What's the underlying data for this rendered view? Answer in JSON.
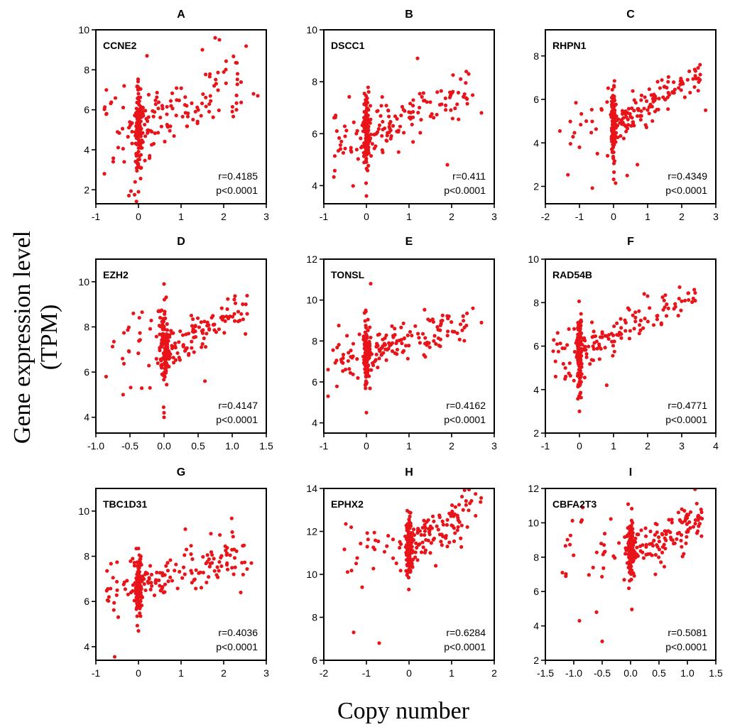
{
  "figure": {
    "ylabel_line1": "Gene expression level",
    "ylabel_line2": "(TPM)",
    "xlabel": "Copy number"
  },
  "colors": {
    "points": "#e8141a",
    "axes": "#000000"
  },
  "chart_data": [
    {
      "type": "scatter",
      "letter": "A",
      "gene": "CCNE2",
      "r": "r=0.4185",
      "p": "p<0.0001",
      "xlim": [
        -1,
        3
      ],
      "ylim": [
        1.3,
        10
      ],
      "xticks": [
        -1,
        0,
        1,
        2,
        3
      ],
      "xtick_labels": [
        "-1",
        "0",
        "1",
        "2",
        "3"
      ],
      "yticks": [
        2,
        4,
        6,
        8,
        10
      ],
      "ytick_labels": [
        "2",
        "4",
        "6",
        "8",
        "10"
      ],
      "cluster_mean": 5.0,
      "cluster_spread": 1.2,
      "slope": 1.0,
      "slope_spread": 1.1,
      "extra": [
        [
          1.8,
          9.6
        ],
        [
          1.9,
          9.5
        ],
        [
          1.5,
          9.0
        ],
        [
          0.2,
          8.7
        ],
        [
          2.7,
          6.8
        ],
        [
          2.8,
          6.7
        ],
        [
          -0.8,
          2.8
        ],
        [
          0.0,
          1.9
        ],
        [
          2.3,
          6.0
        ]
      ]
    },
    {
      "type": "scatter",
      "letter": "B",
      "gene": "DSCC1",
      "r": "r=0.411",
      "p": "p<0.0001",
      "xlim": [
        -1,
        3
      ],
      "ylim": [
        3.3,
        10
      ],
      "xticks": [
        -1,
        0,
        1,
        2,
        3
      ],
      "xtick_labels": [
        "-1",
        "0",
        "1",
        "2",
        "3"
      ],
      "yticks": [
        4,
        6,
        8,
        10
      ],
      "ytick_labels": [
        "4",
        "6",
        "8",
        "10"
      ],
      "cluster_mean": 6.0,
      "cluster_spread": 0.75,
      "slope": 0.7,
      "slope_spread": 0.7,
      "extra": [
        [
          1.2,
          8.9
        ],
        [
          2.4,
          8.3
        ],
        [
          0.0,
          3.6
        ],
        [
          1.9,
          4.8
        ],
        [
          2.7,
          6.8
        ],
        [
          -0.5,
          5.9
        ]
      ]
    },
    {
      "type": "scatter",
      "letter": "C",
      "gene": "RHPN1",
      "r": "r=0.4349",
      "p": "p<0.0001",
      "xlim": [
        -2,
        3
      ],
      "ylim": [
        1.2,
        9.2
      ],
      "xticks": [
        -2,
        -1,
        0,
        1,
        2,
        3
      ],
      "xtick_labels": [
        "-2",
        "-1",
        "0",
        "1",
        "2",
        "3"
      ],
      "yticks": [
        2,
        4,
        6,
        8
      ],
      "ytick_labels": [
        "2",
        "4",
        "6",
        "8"
      ],
      "cluster_mean": 4.9,
      "cluster_spread": 0.9,
      "slope": 0.9,
      "slope_spread": 0.6,
      "extra": [
        [
          2.5,
          6.8
        ],
        [
          2.7,
          5.5
        ],
        [
          -1.0,
          3.8
        ],
        [
          -0.8,
          5.0
        ],
        [
          0.4,
          2.5
        ],
        [
          0.7,
          3.0
        ]
      ]
    },
    {
      "type": "scatter",
      "letter": "D",
      "gene": "EZH2",
      "r": "r=0.4147",
      "p": "p<0.0001",
      "xlim": [
        -1.0,
        1.5
      ],
      "ylim": [
        3.3,
        11
      ],
      "xticks": [
        -1.0,
        -0.5,
        0.0,
        0.5,
        1.0,
        1.5
      ],
      "xtick_labels": [
        "-1.0",
        "-0.5",
        "0.0",
        "0.5",
        "1.0",
        "1.5"
      ],
      "yticks": [
        4,
        6,
        8,
        10
      ],
      "ytick_labels": [
        "4",
        "6",
        "8",
        "10"
      ],
      "cluster_mean": 7.0,
      "cluster_spread": 0.85,
      "slope": 1.5,
      "slope_spread": 0.6,
      "extra": [
        [
          0.0,
          9.9
        ],
        [
          0.0,
          4.0
        ],
        [
          0.0,
          4.2
        ],
        [
          -0.85,
          5.8
        ],
        [
          -0.6,
          5.0
        ],
        [
          -0.45,
          8.6
        ],
        [
          1.2,
          9.0
        ],
        [
          0.6,
          5.6
        ]
      ]
    },
    {
      "type": "scatter",
      "letter": "E",
      "gene": "TONSL",
      "r": "r=0.4162",
      "p": "p<0.0001",
      "xlim": [
        -1,
        3
      ],
      "ylim": [
        3.5,
        12
      ],
      "xticks": [
        -1,
        0,
        1,
        2,
        3
      ],
      "xtick_labels": [
        "-1",
        "0",
        "1",
        "2",
        "3"
      ],
      "yticks": [
        4,
        6,
        8,
        10,
        12
      ],
      "ytick_labels": [
        "4",
        "6",
        "8",
        "10",
        "12"
      ],
      "cluster_mean": 7.3,
      "cluster_spread": 0.75,
      "slope": 0.7,
      "slope_spread": 0.7,
      "extra": [
        [
          0.1,
          10.8
        ],
        [
          0.0,
          4.5
        ],
        [
          2.5,
          9.6
        ],
        [
          2.7,
          8.9
        ],
        [
          -0.9,
          5.3
        ],
        [
          -0.9,
          6.6
        ]
      ]
    },
    {
      "type": "scatter",
      "letter": "F",
      "gene": "RAD54B",
      "r": "r=0.4771",
      "p": "p<0.0001",
      "xlim": [
        -1,
        4
      ],
      "ylim": [
        2,
        10
      ],
      "xticks": [
        -1,
        0,
        1,
        2,
        3,
        4
      ],
      "xtick_labels": [
        "-1",
        "0",
        "1",
        "2",
        "3",
        "4"
      ],
      "yticks": [
        2,
        4,
        6,
        8,
        10
      ],
      "ytick_labels": [
        "2",
        "4",
        "6",
        "8",
        "10"
      ],
      "cluster_mean": 5.7,
      "cluster_spread": 0.85,
      "slope": 0.8,
      "slope_spread": 0.6,
      "extra": [
        [
          1.9,
          8.4
        ],
        [
          2.0,
          8.3
        ],
        [
          2.9,
          7.4
        ],
        [
          0.0,
          3.0
        ],
        [
          -0.7,
          4.6
        ],
        [
          0.8,
          4.2
        ]
      ]
    },
    {
      "type": "scatter",
      "letter": "G",
      "gene": "TBC1D31",
      "r": "r=0.4036",
      "p": "p<0.0001",
      "xlim": [
        -1,
        3
      ],
      "ylim": [
        3.4,
        11
      ],
      "xticks": [
        -1,
        0,
        1,
        2,
        3
      ],
      "xtick_labels": [
        "-1",
        "0",
        "1",
        "2",
        "3"
      ],
      "yticks": [
        4,
        6,
        8,
        10
      ],
      "ytick_labels": [
        "4",
        "6",
        "8",
        "10"
      ],
      "cluster_mean": 6.7,
      "cluster_spread": 0.75,
      "slope": 0.6,
      "slope_spread": 0.6,
      "extra": [
        [
          1.1,
          9.2
        ],
        [
          2.65,
          7.7
        ],
        [
          0.0,
          4.7
        ],
        [
          2.4,
          6.4
        ],
        [
          -0.5,
          6.5
        ],
        [
          1.7,
          9.0
        ]
      ]
    },
    {
      "type": "scatter",
      "letter": "H",
      "gene": "EPHX2",
      "r": "r=0.6284",
      "p": "p<0.0001",
      "xlim": [
        -2,
        2
      ],
      "ylim": [
        6,
        14
      ],
      "xticks": [
        -2,
        -1,
        0,
        1,
        2
      ],
      "xtick_labels": [
        "-2",
        "-1",
        "0",
        "1",
        "2"
      ],
      "yticks": [
        6,
        8,
        10,
        12,
        14
      ],
      "ytick_labels": [
        "6",
        "8",
        "10",
        "12",
        "14"
      ],
      "cluster_mean": 11.2,
      "cluster_spread": 0.7,
      "slope": 1.3,
      "slope_spread": 0.8,
      "extra": [
        [
          1.0,
          12.8
        ],
        [
          -1.3,
          7.3
        ],
        [
          -0.7,
          6.8
        ],
        [
          0.9,
          11.3
        ],
        [
          0.5,
          11.0
        ],
        [
          -1.1,
          9.4
        ]
      ]
    },
    {
      "type": "scatter",
      "letter": "I",
      "gene": "CBFA2T3",
      "r": "r=0.5081",
      "p": "p<0.0001",
      "xlim": [
        -1.5,
        1.5
      ],
      "ylim": [
        2,
        12
      ],
      "xticks": [
        -1.5,
        -1.0,
        -0.5,
        0.0,
        0.5,
        1.0,
        1.5
      ],
      "xtick_labels": [
        "-1.5",
        "-1.0",
        "-0.5",
        "0.0",
        "0.5",
        "1.0",
        "1.5"
      ],
      "yticks": [
        2,
        4,
        6,
        8,
        10,
        12
      ],
      "ytick_labels": [
        "2",
        "4",
        "6",
        "8",
        "10",
        "12"
      ],
      "cluster_mean": 8.3,
      "cluster_spread": 0.9,
      "slope": 1.5,
      "slope_spread": 1.0,
      "extra": [
        [
          1.05,
          9.7
        ],
        [
          -0.5,
          3.1
        ],
        [
          0.35,
          9.5
        ],
        [
          -0.9,
          4.3
        ],
        [
          -0.6,
          4.8
        ],
        [
          -1.2,
          7.1
        ]
      ]
    }
  ]
}
